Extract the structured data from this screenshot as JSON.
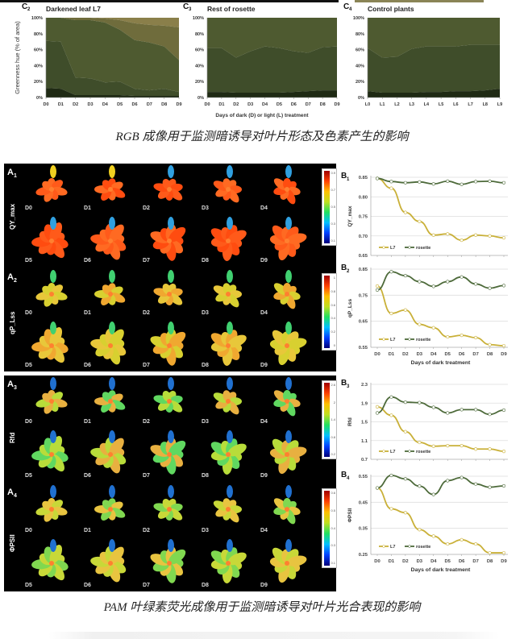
{
  "captions": {
    "rgb": "RGB 成像用于监测暗诱导对叶片形态及色素产生的影响",
    "pam": "PAM 叶绿素荧光成像用于监测暗诱导对叶片光合表现的影响"
  },
  "rgb_panels": {
    "ylabel": "Greenness hue (% of area)",
    "xlabel": "Days of dark (D) or light (L) treatment",
    "yticks": [
      "0%",
      "20%",
      "40%",
      "60%",
      "80%",
      "100%"
    ]
  },
  "pam_images": {
    "panels": [
      {
        "letter": "A",
        "sub": "1",
        "param": "QY_max",
        "colorbar_ticks": [
          "0.9",
          "0.7",
          "0.5",
          "0.3",
          "0.1"
        ]
      },
      {
        "letter": "A",
        "sub": "2",
        "param": "qP_Lss",
        "colorbar_ticks": [
          "1",
          "0.8",
          "0.6",
          "0.4",
          "0.2",
          "0"
        ]
      },
      {
        "letter": "A",
        "sub": "3",
        "param": "Rfd",
        "colorbar_ticks": [
          "2.6",
          "2",
          "1.4",
          "0.8",
          "0.2"
        ]
      },
      {
        "letter": "A",
        "sub": "4",
        "param": "ΦPSII",
        "colorbar_ticks": [
          "0.6",
          "0.5",
          "0.4",
          "0.3",
          "0.1"
        ]
      }
    ],
    "day_labels": [
      "D0",
      "D1",
      "D2",
      "D3",
      "D4",
      "D5",
      "D6",
      "D7",
      "D8",
      "D9"
    ]
  },
  "chart_data": [
    {
      "id": "C2",
      "type": "area",
      "letter": "C",
      "sub": "2",
      "title": "Darkened leaf L7",
      "x": [
        "D0",
        "D1",
        "D2",
        "D3",
        "D4",
        "D5",
        "D6",
        "D7",
        "D8",
        "D9"
      ],
      "ylabel": "Greenness hue (% of area)",
      "ylim": [
        0,
        100
      ],
      "series_cumulative": [
        {
          "name": "dark green",
          "values": [
            12,
            11,
            3,
            3,
            3,
            3,
            2,
            2,
            2,
            2
          ],
          "color": "#1f2a14"
        },
        {
          "name": "green",
          "values": [
            71,
            70,
            25,
            24,
            19,
            20,
            11,
            9,
            11,
            7
          ],
          "color": "#3f4d2a"
        },
        {
          "name": "olive",
          "values": [
            100,
            100,
            97,
            97,
            94,
            85,
            72,
            69,
            64,
            47
          ],
          "color": "#4e5a30"
        },
        {
          "name": "yellow-olive",
          "values": [
            100,
            100,
            100,
            100,
            99,
            97,
            93,
            91,
            90,
            88
          ],
          "color": "#6f6c3c"
        },
        {
          "name": "yellow",
          "values": [
            100,
            100,
            100,
            100,
            100,
            100,
            100,
            100,
            100,
            100
          ],
          "color": "#8a7f4a"
        }
      ]
    },
    {
      "id": "C3",
      "type": "area",
      "letter": "C",
      "sub": "3",
      "title": "Rest of rosette",
      "x": [
        "D0",
        "D1",
        "D2",
        "D3",
        "D4",
        "D5",
        "D6",
        "D7",
        "D8",
        "D9"
      ],
      "ylabel": "",
      "ylim": [
        0,
        100
      ],
      "series_cumulative": [
        {
          "name": "dark green",
          "values": [
            7,
            7,
            6,
            6,
            6,
            6,
            7,
            8,
            9,
            9
          ],
          "color": "#1f2a14"
        },
        {
          "name": "green",
          "values": [
            62,
            62,
            50,
            58,
            64,
            62,
            58,
            56,
            63,
            64
          ],
          "color": "#3f4d2a"
        },
        {
          "name": "olive",
          "values": [
            100,
            100,
            100,
            100,
            100,
            100,
            100,
            100,
            100,
            100
          ],
          "color": "#4e5a30"
        }
      ]
    },
    {
      "id": "C4",
      "type": "area",
      "letter": "C",
      "sub": "4",
      "title": "Control plants",
      "x": [
        "L0",
        "L1",
        "L2",
        "L3",
        "L4",
        "L5",
        "L6",
        "L7",
        "L8",
        "L9"
      ],
      "ylabel": "",
      "ylim": [
        0,
        100
      ],
      "series_cumulative": [
        {
          "name": "dark green",
          "values": [
            8,
            6,
            6,
            6,
            7,
            7,
            8,
            8,
            9,
            11
          ],
          "color": "#1f2a14"
        },
        {
          "name": "green",
          "values": [
            62,
            50,
            51,
            61,
            64,
            64,
            64,
            66,
            66,
            66
          ],
          "color": "#3f4d2a"
        },
        {
          "name": "olive",
          "values": [
            100,
            100,
            100,
            100,
            100,
            100,
            100,
            100,
            100,
            100
          ],
          "color": "#4e5a30"
        }
      ]
    },
    {
      "id": "B1",
      "type": "line",
      "letter": "B",
      "sub": "1",
      "ylabel": "QY_max",
      "xlabel": "",
      "ylim": [
        0.65,
        0.85
      ],
      "yticks": [
        "0.65",
        "0.70",
        "0.75",
        "0.80",
        "0.85"
      ],
      "x": [
        "D0",
        "D1",
        "D2",
        "D3",
        "D4",
        "D5",
        "D6",
        "D7",
        "D8",
        "D9"
      ],
      "series": [
        {
          "name": "L7",
          "values": [
            0.847,
            0.822,
            0.76,
            0.737,
            0.702,
            0.705,
            0.689,
            0.702,
            0.7,
            0.695
          ],
          "color": "#c9b038"
        },
        {
          "name": "rosette",
          "values": [
            0.847,
            0.839,
            0.836,
            0.838,
            0.833,
            0.84,
            0.832,
            0.839,
            0.84,
            0.836
          ],
          "color": "#4d6a3a"
        }
      ]
    },
    {
      "id": "B2",
      "type": "line",
      "letter": "B",
      "sub": "2",
      "ylabel": "qP_Lss",
      "xlabel": "Days of dark treatment",
      "ylim": [
        0.55,
        0.85
      ],
      "yticks": [
        "0.55",
        "0.65",
        "0.75",
        "0.85"
      ],
      "x": [
        "D0",
        "D1",
        "D2",
        "D3",
        "D4",
        "D5",
        "D6",
        "D7",
        "D8",
        "D9"
      ],
      "series": [
        {
          "name": "L7",
          "values": [
            0.785,
            0.68,
            0.693,
            0.638,
            0.625,
            0.59,
            0.596,
            0.587,
            0.56,
            0.556
          ],
          "color": "#c9b038"
        },
        {
          "name": "rosette",
          "values": [
            0.77,
            0.84,
            0.825,
            0.802,
            0.784,
            0.802,
            0.82,
            0.793,
            0.777,
            0.787
          ],
          "color": "#4d6a3a"
        }
      ]
    },
    {
      "id": "B3",
      "type": "line",
      "letter": "B",
      "sub": "3",
      "ylabel": "Rfd",
      "xlabel": "",
      "ylim": [
        0.7,
        2.3
      ],
      "yticks": [
        "0.7",
        "1.1",
        "1.5",
        "1.9",
        "2.3"
      ],
      "x": [
        "D0",
        "D1",
        "D2",
        "D3",
        "D4",
        "D5",
        "D6",
        "D7",
        "D8",
        "D9"
      ],
      "series": [
        {
          "name": "L7",
          "values": [
            1.82,
            1.64,
            1.29,
            1.06,
            0.98,
            0.99,
            0.99,
            0.92,
            0.92,
            0.87
          ],
          "color": "#c9b038"
        },
        {
          "name": "rosette",
          "values": [
            1.69,
            2.03,
            1.92,
            1.91,
            1.81,
            1.69,
            1.76,
            1.76,
            1.66,
            1.75
          ],
          "color": "#4d6a3a"
        }
      ]
    },
    {
      "id": "B4",
      "type": "line",
      "letter": "B",
      "sub": "4",
      "ylabel": "ΦPSII",
      "xlabel": "Days of dark treatment",
      "ylim": [
        0.25,
        0.55
      ],
      "yticks": [
        "0.25",
        "0.35",
        "0.45",
        "0.55"
      ],
      "x": [
        "D0",
        "D1",
        "D2",
        "D3",
        "D4",
        "D5",
        "D6",
        "D7",
        "D8",
        "D9"
      ],
      "series": [
        {
          "name": "L7",
          "values": [
            0.505,
            0.425,
            0.41,
            0.345,
            0.32,
            0.29,
            0.306,
            0.29,
            0.256,
            0.256
          ],
          "color": "#c9b038"
        },
        {
          "name": "rosette",
          "values": [
            0.505,
            0.553,
            0.54,
            0.512,
            0.48,
            0.533,
            0.545,
            0.52,
            0.508,
            0.513
          ],
          "color": "#4d6a3a"
        }
      ]
    }
  ]
}
